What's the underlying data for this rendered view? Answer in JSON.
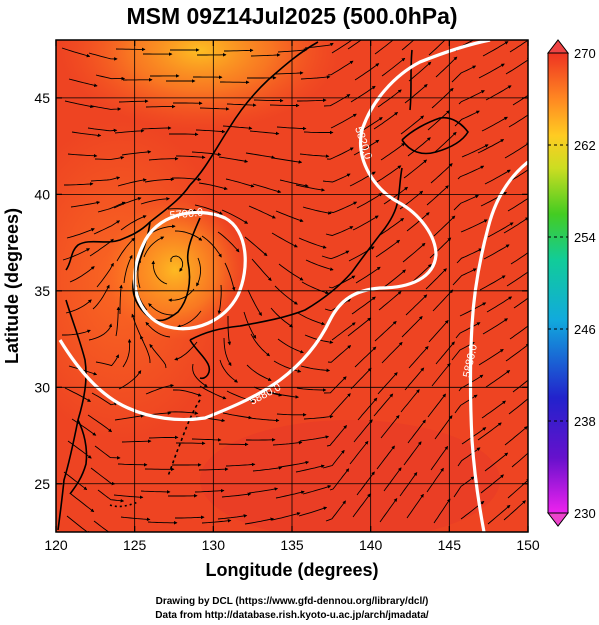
{
  "title": "MSM 09Z14Jul2025 (500.0hPa)",
  "chart_data": {
    "type": "map",
    "xlabel": "Longitude (degrees)",
    "ylabel": "Latitude  (degrees)",
    "xlim": [
      120,
      150
    ],
    "ylim": [
      22.5,
      48
    ],
    "xticks": [
      120,
      125,
      130,
      135,
      140,
      145,
      150
    ],
    "yticks": [
      25,
      30,
      35,
      40,
      45
    ],
    "grid": true,
    "colorbar": {
      "range": [
        230,
        270
      ],
      "ticks": [
        230,
        238,
        246,
        254,
        262,
        270
      ],
      "orientation": "vertical",
      "placement": "right"
    },
    "contours": [
      {
        "label": "5700.0",
        "lon": 132.5,
        "lat": 39.8
      },
      {
        "label": "5820.0",
        "lon": 142.5,
        "lat": 43.0
      },
      {
        "label": "5880.0",
        "lon": 137.0,
        "lat": 30.0
      },
      {
        "label": "5880.0",
        "lon": 146.5,
        "lat": 31.5
      }
    ],
    "colors": {
      "field_main": "#ee4422",
      "field_warm": "#ff6622",
      "field_yellow": "#ffbb22",
      "contour": "#ffffff",
      "coast": "#000000"
    }
  },
  "credits": [
    "Drawing by DCL (https://www.gfd-dennou.org/library/dcl/)",
    "Data from http://database.rish.kyoto-u.ac.jp/arch/jmadata/"
  ]
}
